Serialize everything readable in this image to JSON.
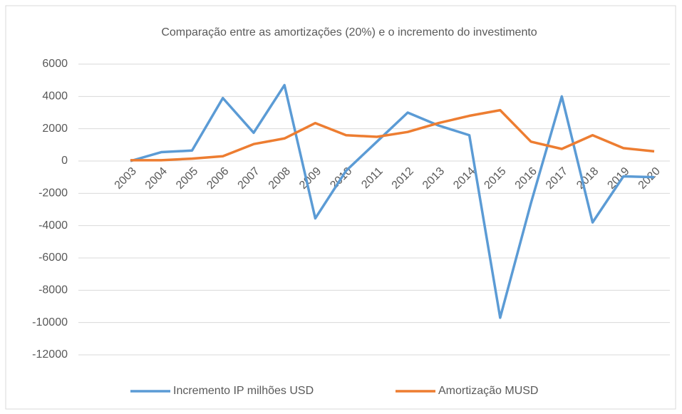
{
  "chart_data": {
    "type": "line",
    "title": "Comparação entre as amortizações (20%) e o incremento do investimento",
    "categories": [
      "2003",
      "2004",
      "2005",
      "2006",
      "2007",
      "2008",
      "2009",
      "2010",
      "2011",
      "2012",
      "2013",
      "2014",
      "2015",
      "2016",
      "2017",
      "2018",
      "2019",
      "2020"
    ],
    "series": [
      {
        "name": "Incremento IP milhões USD",
        "color": "#5b9bd5",
        "values": [
          0,
          550,
          650,
          3900,
          1750,
          4700,
          -3550,
          -600,
          1200,
          3000,
          2200,
          1600,
          -9700,
          -2600,
          4000,
          -3800,
          -950,
          -1000
        ]
      },
      {
        "name": "Amortização MUSD",
        "color": "#ed7d31",
        "values": [
          50,
          50,
          150,
          300,
          1050,
          1400,
          2350,
          1600,
          1500,
          1800,
          2350,
          2800,
          3150,
          1200,
          750,
          1600,
          800,
          600
        ]
      }
    ],
    "ylim": [
      -12000,
      6000
    ],
    "yticks": [
      -12000,
      -10000,
      -8000,
      -6000,
      -4000,
      -2000,
      0,
      2000,
      4000,
      6000
    ],
    "grid": true,
    "legend": "bottom"
  }
}
